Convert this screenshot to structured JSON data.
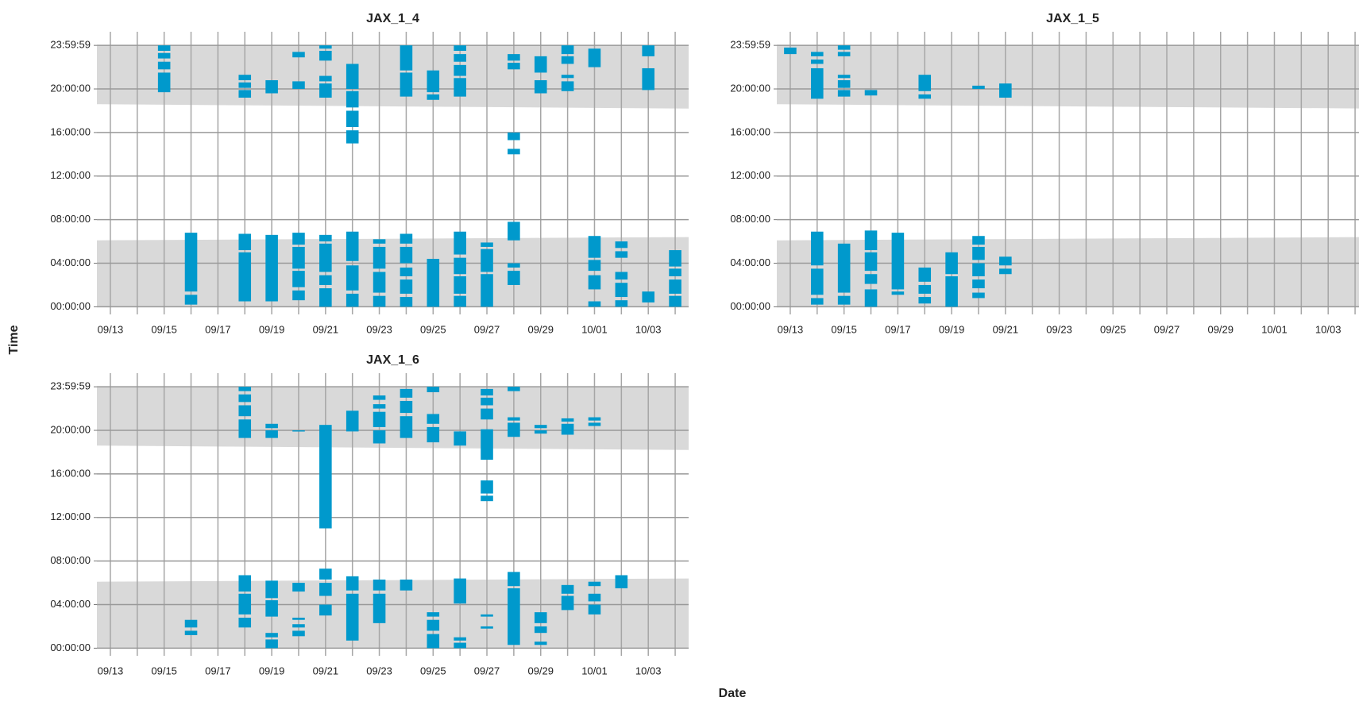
{
  "chart_data": {
    "type": "range",
    "ylabel": "Time",
    "xlabel": "Date",
    "categories": [
      "09/13",
      null,
      "09/15",
      null,
      "09/17",
      null,
      "09/19",
      null,
      "09/21",
      null,
      "09/23",
      null,
      "09/25",
      null,
      "09/27",
      null,
      "09/29",
      null,
      "10/01",
      null,
      "10/03",
      null
    ],
    "ylim": [
      -0.7,
      25.25
    ],
    "yticks": [
      {
        "value": 0,
        "label": "00:00:00"
      },
      {
        "value": 4,
        "label": "04:00:00"
      },
      {
        "value": 8,
        "label": "08:00:00"
      },
      {
        "value": 12,
        "label": "12:00:00"
      },
      {
        "value": 16,
        "label": "16:00:00"
      },
      {
        "value": 20,
        "label": "20:00:00"
      },
      {
        "value": 23.9997,
        "label": "23:59:59"
      }
    ],
    "grid": true,
    "color": "#0099cc",
    "night_color": "#d9d9d9",
    "panels": [
      {
        "title": "JAX_1_4",
        "sunset": [
          18.6,
          18.2
        ],
        "sunrise": [
          6.1,
          6.4
        ],
        "days": [
          [],
          [],
          [
            [
              19.7,
              21.5
            ],
            [
              21.8,
              22.5
            ],
            [
              22.8,
              23.3
            ],
            [
              23.5,
              24
            ]
          ],
          [
            [
              0.2,
              1.1
            ],
            [
              1.4,
              6.8
            ]
          ],
          [],
          [
            [
              19.2,
              19.9
            ],
            [
              20.1,
              20.6
            ],
            [
              20.8,
              21.3
            ],
            [
              0.5,
              5.0
            ],
            [
              5.2,
              6.7
            ]
          ],
          [
            [
              19.6,
              20.8
            ],
            [
              0.5,
              6.6
            ]
          ],
          [
            [
              20.0,
              20.7
            ],
            [
              22.9,
              23.4
            ],
            [
              0.6,
              1.5
            ],
            [
              1.8,
              3.3
            ],
            [
              3.5,
              5.5
            ],
            [
              5.7,
              6.8
            ]
          ],
          [
            [
              19.2,
              20.5
            ],
            [
              20.7,
              21.2
            ],
            [
              22.6,
              23.5
            ],
            [
              23.7,
              24
            ],
            [
              0,
              1.7
            ],
            [
              2.0,
              2.9
            ],
            [
              3.2,
              5.8
            ],
            [
              6.0,
              6.6
            ]
          ],
          [
            [
              15.0,
              16.2
            ],
            [
              16.5,
              18.0
            ],
            [
              18.3,
              19.8
            ],
            [
              20.0,
              22.3
            ],
            [
              0,
              1.2
            ],
            [
              1.5,
              3.8
            ],
            [
              4.2,
              6.9
            ]
          ],
          [
            [
              0,
              1.0
            ],
            [
              1.3,
              3.2
            ],
            [
              3.5,
              5.5
            ],
            [
              5.8,
              6.2
            ]
          ],
          [
            [
              19.3,
              21.5
            ],
            [
              21.7,
              24
            ],
            [
              0,
              0.9
            ],
            [
              1.2,
              2.5
            ],
            [
              2.8,
              3.6
            ],
            [
              4.0,
              5.5
            ],
            [
              5.8,
              6.7
            ]
          ],
          [
            [
              19.0,
              19.5
            ],
            [
              19.7,
              21.7
            ],
            [
              0,
              4.4
            ]
          ],
          [
            [
              19.3,
              21.0
            ],
            [
              21.2,
              22.2
            ],
            [
              22.5,
              23.2
            ],
            [
              23.5,
              24
            ],
            [
              0,
              1.0
            ],
            [
              1.2,
              2.8
            ],
            [
              3.0,
              4.5
            ],
            [
              4.8,
              6.9
            ]
          ],
          [
            [
              0,
              3.0
            ],
            [
              3.2,
              5.3
            ],
            [
              5.5,
              5.9
            ]
          ],
          [
            [
              14.0,
              14.5
            ],
            [
              15.3,
              16.0
            ],
            [
              21.8,
              22.4
            ],
            [
              22.6,
              23.2
            ],
            [
              2.0,
              3.3
            ],
            [
              3.6,
              4.0
            ],
            [
              6.1,
              7.8
            ]
          ],
          [
            [
              19.6,
              20.8
            ],
            [
              21.5,
              23.0
            ]
          ],
          [
            [
              19.8,
              20.7
            ],
            [
              21.0,
              21.3
            ],
            [
              22.3,
              23.0
            ],
            [
              23.2,
              24
            ]
          ],
          [
            [
              22.0,
              23.7
            ],
            [
              0,
              0.5
            ],
            [
              1.6,
              2.9
            ],
            [
              3.3,
              4.3
            ],
            [
              4.5,
              6.5
            ]
          ],
          [
            [
              0,
              0.6
            ],
            [
              0.9,
              2.2
            ],
            [
              2.5,
              3.2
            ],
            [
              4.5,
              5.1
            ],
            [
              5.4,
              6.0
            ]
          ],
          [
            [
              19.9,
              21.9
            ],
            [
              23.0,
              24
            ],
            [
              0.4,
              1.4
            ]
          ],
          [
            [
              0,
              1.0
            ],
            [
              1.2,
              2.5
            ],
            [
              2.8,
              3.5
            ],
            [
              3.7,
              5.2
            ]
          ]
        ]
      },
      {
        "title": "JAX_1_5",
        "sunset": [
          18.6,
          18.2
        ],
        "sunrise": [
          6.1,
          6.4
        ],
        "days": [
          [
            [
              23.2,
              23.8
            ]
          ],
          [
            [
              19.1,
              21.9
            ],
            [
              22.3,
              22.7
            ],
            [
              23.0,
              23.4
            ],
            [
              0.2,
              0.8
            ],
            [
              1.1,
              3.5
            ],
            [
              3.8,
              6.9
            ]
          ],
          [
            [
              19.3,
              19.9
            ],
            [
              20.1,
              20.8
            ],
            [
              21.0,
              21.3
            ],
            [
              23.0,
              23.4
            ],
            [
              23.6,
              24
            ],
            [
              0.2,
              1.0
            ],
            [
              1.3,
              5.8
            ]
          ],
          [
            [
              19.4,
              19.9
            ],
            [
              0,
              1.6
            ],
            [
              2.1,
              3.0
            ],
            [
              3.3,
              5.0
            ],
            [
              5.2,
              7.0
            ]
          ],
          [
            [
              1.1,
              1.4
            ],
            [
              1.6,
              6.8
            ]
          ],
          [
            [
              19.1,
              19.5
            ],
            [
              19.8,
              21.3
            ],
            [
              0.3,
              0.9
            ],
            [
              1.2,
              2.0
            ],
            [
              2.3,
              3.6
            ]
          ],
          [
            [
              0,
              2.8
            ],
            [
              3.0,
              5.0
            ]
          ],
          [
            [
              20.0,
              20.3
            ],
            [
              0.8,
              1.3
            ],
            [
              1.7,
              2.5
            ],
            [
              2.8,
              4.0
            ],
            [
              4.3,
              5.5
            ],
            [
              5.7,
              6.5
            ]
          ],
          [
            [
              19.2,
              20.5
            ],
            [
              3.0,
              3.5
            ],
            [
              3.8,
              4.6
            ]
          ],
          [],
          [],
          [],
          [],
          [],
          [],
          [],
          [],
          [],
          [],
          [],
          [],
          []
        ]
      },
      {
        "title": "JAX_1_6",
        "sunset": [
          18.6,
          18.2
        ],
        "sunrise": [
          6.1,
          6.4
        ],
        "days": [
          [],
          [],
          [],
          [
            [
              1.2,
              1.6
            ],
            [
              1.9,
              2.6
            ]
          ],
          [],
          [
            [
              19.3,
              21.0
            ],
            [
              21.3,
              22.3
            ],
            [
              22.6,
              23.3
            ],
            [
              23.6,
              24
            ],
            [
              1.9,
              2.8
            ],
            [
              3.1,
              5.0
            ],
            [
              5.2,
              6.7
            ]
          ],
          [
            [
              19.3,
              20.0
            ],
            [
              20.2,
              20.6
            ],
            [
              0,
              0.8
            ],
            [
              1.0,
              1.4
            ],
            [
              2.9,
              4.4
            ],
            [
              4.6,
              6.2
            ]
          ],
          [
            [
              19.9,
              20.0
            ],
            [
              1.1,
              1.6
            ],
            [
              1.9,
              2.2
            ],
            [
              2.6,
              2.8
            ],
            [
              5.2,
              6.0
            ]
          ],
          [
            [
              11.0,
              20.5
            ],
            [
              3.0,
              4.0
            ],
            [
              4.8,
              6.0
            ],
            [
              6.3,
              7.3
            ]
          ],
          [
            [
              19.9,
              21.8
            ],
            [
              0.7,
              5.0
            ],
            [
              5.3,
              6.6
            ]
          ],
          [
            [
              18.8,
              20.0
            ],
            [
              20.3,
              21.7
            ],
            [
              22.0,
              22.4
            ],
            [
              22.8,
              23.2
            ],
            [
              2.3,
              5.0
            ],
            [
              5.3,
              6.3
            ]
          ],
          [
            [
              19.3,
              21.3
            ],
            [
              21.6,
              22.7
            ],
            [
              23.0,
              23.8
            ],
            [
              5.3,
              6.3
            ]
          ],
          [
            [
              18.9,
              20.3
            ],
            [
              20.6,
              21.5
            ],
            [
              23.5,
              24
            ],
            [
              0,
              1.3
            ],
            [
              1.6,
              2.6
            ],
            [
              2.9,
              3.3
            ]
          ],
          [
            [
              18.6,
              19.9
            ],
            [
              0,
              0.5
            ],
            [
              0.7,
              1.0
            ],
            [
              4.1,
              6.4
            ]
          ],
          [
            [
              13.5,
              14.0
            ],
            [
              14.2,
              15.4
            ],
            [
              17.3,
              20.1
            ],
            [
              21.0,
              22.0
            ],
            [
              22.3,
              23.0
            ],
            [
              23.2,
              23.8
            ],
            [
              1.8,
              2.0
            ],
            [
              2.9,
              3.1
            ]
          ],
          [
            [
              19.4,
              20.7
            ],
            [
              20.9,
              21.2
            ],
            [
              23.6,
              24
            ],
            [
              0.3,
              5.5
            ],
            [
              5.7,
              7.0
            ]
          ],
          [
            [
              19.7,
              20.0
            ],
            [
              20.2,
              20.5
            ],
            [
              0.3,
              0.6
            ],
            [
              1.4,
              2.0
            ],
            [
              2.3,
              3.3
            ]
          ],
          [
            [
              19.6,
              20.6
            ],
            [
              20.8,
              21.1
            ],
            [
              3.5,
              4.8
            ],
            [
              5.0,
              5.8
            ]
          ],
          [
            [
              20.4,
              20.7
            ],
            [
              20.9,
              21.2
            ],
            [
              3.1,
              4.0
            ],
            [
              4.3,
              5.0
            ],
            [
              5.7,
              6.1
            ]
          ],
          [
            [
              5.5,
              6.7
            ]
          ],
          [],
          []
        ]
      }
    ]
  }
}
